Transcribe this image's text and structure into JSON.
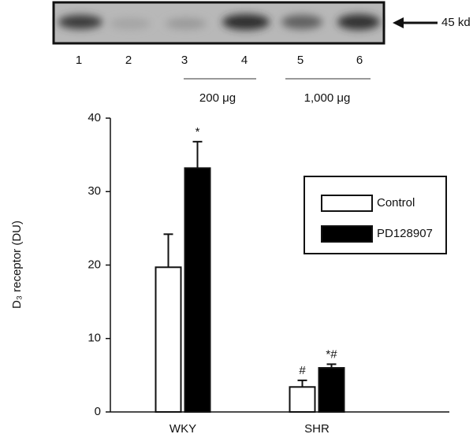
{
  "blot": {
    "marker": "45 kd",
    "lanes": [
      "1",
      "2",
      "3",
      "4",
      "5",
      "6"
    ],
    "groups": [
      "200 μg",
      "1,000 μg"
    ]
  },
  "chart_data": {
    "type": "bar",
    "y_label": "D₃ receptor (DU)",
    "categories": [
      "WKY",
      "SHR"
    ],
    "series": [
      {
        "name": "Control",
        "color": "#ffffff",
        "values": [
          19.7,
          3.4
        ],
        "errors": [
          4.5,
          0.9
        ],
        "annotations": [
          null,
          "#"
        ]
      },
      {
        "name": "PD128907",
        "color": "#000000",
        "values": [
          33.2,
          6.0
        ],
        "errors": [
          3.6,
          0.5
        ],
        "annotations": [
          "*",
          "*#"
        ]
      }
    ],
    "ylim": [
      0,
      40
    ],
    "yticks": [
      0,
      10,
      20,
      30,
      40
    ],
    "grid": false,
    "legend": "right"
  }
}
